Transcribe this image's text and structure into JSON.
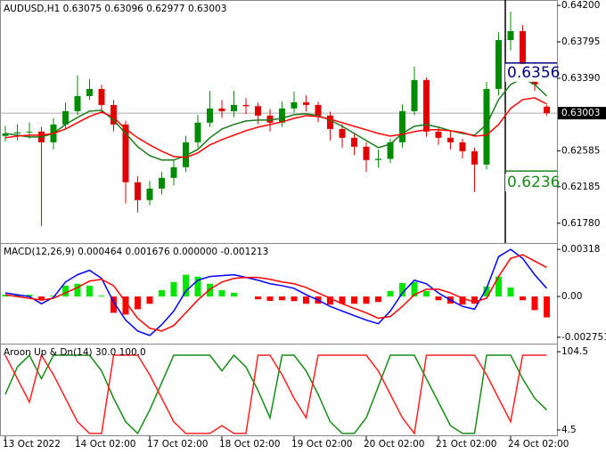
{
  "chart_data": [
    {
      "type": "candlestick",
      "title": "AUDUSD,H1",
      "categories": [
        "13 Oct 2022",
        null,
        null,
        null,
        null,
        null,
        "14 Oct 02:00",
        null,
        null,
        null,
        null,
        null,
        "17 Oct 02:00",
        null,
        null,
        null,
        null,
        null,
        "18 Oct 02:00",
        null,
        null,
        null,
        null,
        null,
        "19 Oct 02:00",
        null,
        null,
        null,
        null,
        null,
        "20 Oct 02:00",
        null,
        null,
        null,
        null,
        null,
        "21 Oct 02:00",
        null,
        null,
        null,
        null,
        null,
        "24 Oct 02:00",
        null,
        null,
        null
      ],
      "open": [
        0.6275,
        0.62778,
        0.6279,
        0.62798,
        0.62679,
        0.62877,
        0.63025,
        0.63193,
        0.63272,
        0.63094,
        0.62877,
        0.62235,
        0.62037,
        0.62165,
        0.62284,
        0.62403,
        0.62679,
        0.62897,
        0.63055,
        0.63025,
        0.63094,
        0.6308,
        0.62976,
        0.62897,
        0.63055,
        0.63124,
        0.63094,
        0.62976,
        0.62827,
        0.62729,
        0.6263,
        0.62482,
        0.62495,
        0.62679,
        0.63025,
        0.63371,
        0.62798,
        0.62729,
        0.62679,
        0.6258,
        0.62432,
        0.63272,
        0.63815,
        0.63914,
        0.63519,
        0.63075
      ],
      "high": [
        0.6286,
        0.6288,
        0.629,
        0.6285,
        0.6295,
        0.6312,
        0.6342,
        0.6338,
        0.6332,
        0.6315,
        0.6292,
        0.623,
        0.6225,
        0.6235,
        0.6248,
        0.6275,
        0.6298,
        0.6325,
        0.6315,
        0.6325,
        0.6317,
        0.6312,
        0.6305,
        0.6313,
        0.6324,
        0.632,
        0.6313,
        0.6302,
        0.6288,
        0.6278,
        0.6268,
        0.626,
        0.6272,
        0.631,
        0.6352,
        0.634,
        0.6285,
        0.628,
        0.6272,
        0.6262,
        0.6335,
        0.639,
        0.6413,
        0.6398,
        0.6356,
        0.63096
      ],
      "low": [
        0.6269,
        0.627,
        0.6272,
        0.6175,
        0.626,
        0.6282,
        0.6298,
        0.6315,
        0.63,
        0.628,
        0.62,
        0.619,
        0.6198,
        0.621,
        0.622,
        0.6235,
        0.6262,
        0.6285,
        0.6295,
        0.6296,
        0.6299,
        0.6288,
        0.628,
        0.6285,
        0.6301,
        0.6302,
        0.629,
        0.627,
        0.6262,
        0.6254,
        0.6235,
        0.624,
        0.6245,
        0.6262,
        0.6298,
        0.6274,
        0.6265,
        0.626,
        0.625,
        0.6213,
        0.6238,
        0.632,
        0.637,
        0.6345,
        0.6325,
        0.62977
      ],
      "close": [
        0.62778,
        0.6279,
        0.62798,
        0.62679,
        0.62877,
        0.63025,
        0.63193,
        0.63272,
        0.63094,
        0.62877,
        0.62235,
        0.62037,
        0.62165,
        0.62284,
        0.62403,
        0.62679,
        0.62897,
        0.63055,
        0.63025,
        0.63094,
        0.6308,
        0.62976,
        0.62897,
        0.63055,
        0.63124,
        0.63094,
        0.62976,
        0.62827,
        0.62729,
        0.6263,
        0.62482,
        0.62495,
        0.62679,
        0.63025,
        0.63371,
        0.62798,
        0.62729,
        0.62679,
        0.6258,
        0.62432,
        0.63272,
        0.63815,
        0.63914,
        0.63519,
        0.63321,
        0.63003
      ],
      "up_color": "#008c00",
      "down_color": "#e00000",
      "series": [
        {
          "color": "#1a7a1a",
          "values": [
            0.62778,
            0.62758,
            0.62738,
            0.62738,
            0.62778,
            0.62877,
            0.62956,
            0.63025,
            0.63035,
            0.62926,
            0.62778,
            0.6263,
            0.62531,
            0.62482,
            0.62482,
            0.62531,
            0.626,
            0.62729,
            0.62827,
            0.62877,
            0.62916,
            0.62926,
            0.62926,
            0.62946,
            0.62985,
            0.62995,
            0.62976,
            0.62926,
            0.62857,
            0.62778,
            0.62699,
            0.6262,
            0.6266,
            0.62778,
            0.62857,
            0.62877,
            0.62847,
            0.62808,
            0.62778,
            0.62758,
            0.62877,
            0.63153,
            0.63321,
            0.63391,
            0.63321,
            0.63193
          ]
        },
        {
          "color": "#ff0000",
          "values": [
            0.62729,
            0.62748,
            0.62758,
            0.62758,
            0.62778,
            0.62827,
            0.62897,
            0.62966,
            0.63015,
            0.62956,
            0.62827,
            0.62729,
            0.6265,
            0.6258,
            0.62521,
            0.62511,
            0.62561,
            0.6265,
            0.62709,
            0.62758,
            0.62808,
            0.62847,
            0.62877,
            0.62906,
            0.62946,
            0.62976,
            0.62966,
            0.62936,
            0.62897,
            0.62857,
            0.62818,
            0.62778,
            0.62748,
            0.62768,
            0.62798,
            0.62818,
            0.62818,
            0.62808,
            0.62788,
            0.62748,
            0.62758,
            0.62877,
            0.63055,
            0.63153,
            0.63173,
            0.63104
          ]
        }
      ],
      "levels": [
        {
          "value": 0.6356,
          "color": "#000080"
        },
        {
          "value": 0.6236,
          "color": "#1a8a1a"
        }
      ],
      "ylim": [
        0.6157,
        0.6426
      ],
      "yticks": [
        {
          "value": 0.642,
          "label": "0.64200"
        },
        0.63795,
        {
          "value": 0.6339,
          "label": "0.63390"
        },
        0.62585,
        0.62185,
        {
          "value": 0.6178,
          "label": "0.61780"
        }
      ]
    },
    {
      "type": "macd",
      "title": "MACD(12,26,9) 0.000464 0.001676 0.000000 -0.001213",
      "series": [
        {
          "kind": "bar",
          "color": "#00e600",
          "negative_color": "#ff0000",
          "values": [
            0.00012,
            0.00012,
            0.00012,
            -0.00025,
            6e-05,
            0.00074,
            0.00086,
            0.00073,
            6e-05,
            -0.0011,
            -0.00122,
            -0.00086,
            -0.00049,
            0.00043,
            0.00098,
            0.00147,
            0.00134,
            0.00086,
            0.00043,
            0.00025,
            0,
            -0.00019,
            -0.0003,
            -0.00025,
            -0.00031,
            -0.00049,
            -0.00048,
            -0.00055,
            -0.00049,
            -0.00049,
            -0.00049,
            -0.00037,
            0.00037,
            0.00091,
            0.00098,
            0.00037,
            -0.00025,
            -0.00048,
            -0.00055,
            -0.00049,
            0.00067,
            0.00134,
            0.00061,
            -0.00025,
            -0.00092,
            -0.00141
          ]
        },
        {
          "kind": "line",
          "color": "#0000ff",
          "values": [
            0.00024,
            0.00012,
            0,
            -0.00049,
            -6e-05,
            0.00098,
            0.00147,
            0.00177,
            0.00122,
            -0.00037,
            -0.00159,
            -0.00233,
            -0.00263,
            -0.0019,
            -0.00098,
            0.00037,
            0.0011,
            0.00135,
            0.00141,
            0.00147,
            0.00129,
            0.0011,
            0.00086,
            0.00073,
            0.00055,
            0.00012,
            -0.00024,
            -0.00067,
            -0.00098,
            -0.00129,
            -0.00159,
            -0.00184,
            -0.00098,
            0.00024,
            0.0011,
            0.00086,
            0.00024,
            -0.00024,
            -0.00067,
            -0.00086,
            0.00055,
            0.00269,
            0.00318,
            0.00257,
            0.00147,
            0.00055
          ]
        },
        {
          "kind": "line",
          "color": "#ff0000",
          "values": [
            0.00012,
            0,
            -0.00012,
            -0.00024,
            -0.00012,
            0.00024,
            0.00061,
            0.00104,
            0.00116,
            0.00073,
            -0.00037,
            -0.00147,
            -0.00214,
            -0.00233,
            -0.00196,
            -0.0011,
            -0.00024,
            0.00049,
            0.00098,
            0.00122,
            0.00129,
            0.00129,
            0.00116,
            0.00098,
            0.00086,
            0.00061,
            0.00024,
            -0.00012,
            -0.00049,
            -0.0008,
            -0.0011,
            -0.00147,
            -0.00135,
            -0.00067,
            0.00012,
            0.00049,
            0.00049,
            0.00024,
            -0.00012,
            -0.00037,
            -0.00012,
            0.00135,
            0.00257,
            0.00282,
            0.00239,
            0.00196
          ]
        }
      ],
      "ylim": [
        -0.00318,
        0.00355
      ],
      "yticks": [
        0.00318,
        {
          "value": 0,
          "label": "0.00"
        },
        -0.002751
      ]
    },
    {
      "type": "line",
      "title": "Aroon Up & Dn(14) 30.0 100.0",
      "series": [
        {
          "color": "#168c16",
          "values": [
            50,
            85,
            100,
            70,
            100,
            100,
            100,
            100,
            80,
            45,
            15,
            0,
            30,
            65,
            100,
            100,
            100,
            100,
            80,
            100,
            85,
            55,
            20,
            100,
            100,
            80,
            50,
            15,
            0,
            0,
            20,
            60,
            100,
            100,
            100,
            70,
            40,
            10,
            0,
            0,
            100,
            100,
            100,
            70,
            45,
            30
          ]
        },
        {
          "color": "#ff2020",
          "values": [
            100,
            70,
            40,
            100,
            75,
            45,
            15,
            0,
            0,
            100,
            100,
            100,
            75,
            45,
            15,
            0,
            0,
            0,
            10,
            0,
            0,
            100,
            100,
            75,
            45,
            20,
            100,
            100,
            100,
            100,
            100,
            80,
            50,
            20,
            0,
            100,
            100,
            100,
            100,
            100,
            75,
            45,
            15,
            100,
            100,
            100
          ]
        }
      ],
      "ylim": [
        -3.5,
        113.7
      ],
      "yticks": [
        104.5,
        4.5
      ]
    }
  ]
}
